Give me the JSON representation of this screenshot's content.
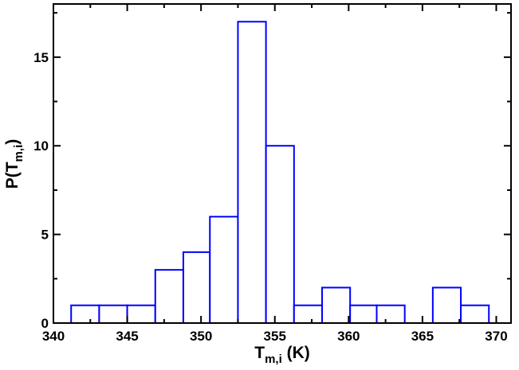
{
  "chart_data": {
    "type": "bar",
    "bins": [
      {
        "x0": 341.2,
        "x1": 343.1,
        "value": 1
      },
      {
        "x0": 343.1,
        "x1": 345.0,
        "value": 1
      },
      {
        "x0": 345.0,
        "x1": 346.9,
        "value": 1
      },
      {
        "x0": 346.9,
        "x1": 348.8,
        "value": 3
      },
      {
        "x0": 348.8,
        "x1": 350.6,
        "value": 4
      },
      {
        "x0": 350.6,
        "x1": 352.5,
        "value": 6
      },
      {
        "x0": 352.5,
        "x1": 354.4,
        "value": 17
      },
      {
        "x0": 354.4,
        "x1": 356.3,
        "value": 10
      },
      {
        "x0": 356.3,
        "x1": 358.2,
        "value": 1
      },
      {
        "x0": 358.2,
        "x1": 360.1,
        "value": 2
      },
      {
        "x0": 360.1,
        "x1": 361.9,
        "value": 1
      },
      {
        "x0": 361.9,
        "x1": 363.8,
        "value": 1
      },
      {
        "x0": 363.8,
        "x1": 365.7,
        "value": 0
      },
      {
        "x0": 365.7,
        "x1": 367.6,
        "value": 2
      },
      {
        "x0": 367.6,
        "x1": 369.5,
        "value": 1
      }
    ],
    "xlim": [
      340,
      371
    ],
    "ylim": [
      0,
      18
    ],
    "x_ticks": [
      340,
      345,
      350,
      355,
      360,
      365,
      370
    ],
    "y_ticks": [
      0,
      5,
      10,
      15
    ],
    "xlabel": {
      "main": "T",
      "sub": "m,i",
      "suffix": " (K)"
    },
    "ylabel": {
      "main": "P(T",
      "sub": "m,i",
      "suffix": ")"
    },
    "title": "",
    "grid": false,
    "bar_color": "#0000ff",
    "bar_fill": "#ffffff"
  }
}
